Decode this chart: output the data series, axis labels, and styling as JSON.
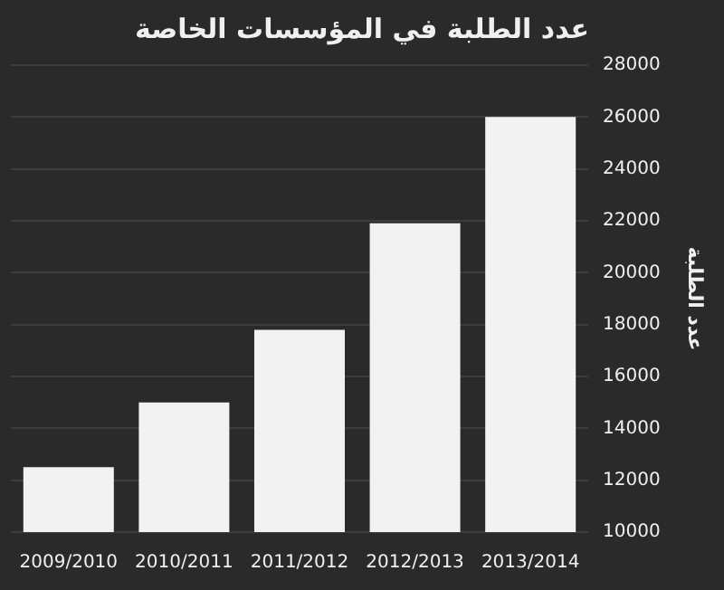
{
  "chart_data": {
    "type": "bar",
    "title": "عدد الطلبة في المؤسسات الخاصة",
    "ylabel": "عدد الطلبة",
    "categories": [
      "2009/2010",
      "2010/2011",
      "2011/2012",
      "2012/2013",
      "2013/2014"
    ],
    "values": [
      12500,
      15000,
      17800,
      21900,
      26000
    ],
    "color": "#f2f2f2",
    "ylim": [
      10000,
      28000
    ],
    "yticks": [
      10000,
      12000,
      14000,
      16000,
      18000,
      20000,
      22000,
      24000,
      26000,
      28000
    ],
    "grid": "y"
  }
}
